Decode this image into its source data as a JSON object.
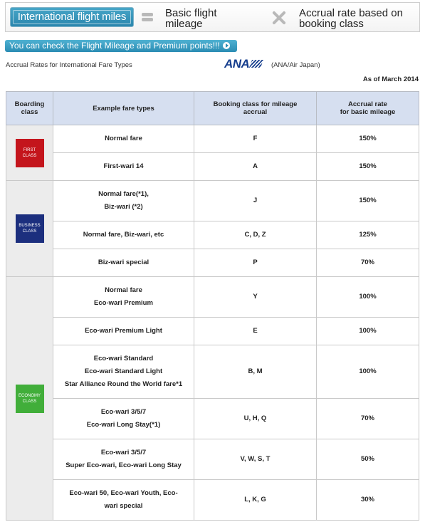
{
  "header": {
    "intl_miles_label": "International flight miles",
    "basic_mileage_label": [
      "Basic flight",
      "mileage"
    ],
    "accrual_rate_label": [
      "Accrual rate based on",
      "booking class"
    ]
  },
  "check_link": "You can check the Flight Mileage and Premium points!!!",
  "subtitle": "Accrual Rates for International Fare Types",
  "airline": {
    "logo": "ANA",
    "name": "(ANA/Air Japan)"
  },
  "as_of": "As of March 2014",
  "table": {
    "headers": [
      [
        "Boarding",
        "class"
      ],
      [
        "Example fare types"
      ],
      [
        "Booking class for mileage",
        "accrual"
      ],
      [
        "Accrual rate",
        "for basic mileage"
      ]
    ],
    "groups": [
      {
        "badge": [
          "FIRST",
          "CLASS"
        ],
        "rows": [
          {
            "fare": [
              "Normal fare"
            ],
            "classes": "F",
            "rate": "150%"
          },
          {
            "fare": [
              "First-wari 14"
            ],
            "classes": "A",
            "rate": "150%"
          }
        ]
      },
      {
        "badge": [
          "BUSINESS",
          "CLASS"
        ],
        "rows": [
          {
            "fare": [
              "Normal fare(*1),",
              "Biz-wari (*2)"
            ],
            "classes": "J",
            "rate": "150%"
          },
          {
            "fare": [
              "Normal fare, Biz-wari, etc"
            ],
            "classes": "C, D, Z",
            "rate": "125%"
          },
          {
            "fare": [
              "Biz-wari special"
            ],
            "classes": "P",
            "rate": "70%"
          }
        ]
      },
      {
        "badge": [
          "ECONOMY",
          "CLASS"
        ],
        "rows": [
          {
            "fare": [
              "Normal fare",
              "Eco-wari Premium"
            ],
            "classes": "Y",
            "rate": "100%"
          },
          {
            "fare": [
              "Eco-wari Premium Light"
            ],
            "classes": "E",
            "rate": "100%"
          },
          {
            "fare": [
              "Eco-wari Standard",
              "Eco-wari Standard Light",
              "Star Alliance Round the World fare*1"
            ],
            "classes": "B, M",
            "rate": "100%"
          },
          {
            "fare": [
              "Eco-wari 3/5/7",
              "Eco-wari Long Stay(*1)"
            ],
            "classes": "U, H, Q",
            "rate": "70%"
          },
          {
            "fare": [
              "Eco-wari 3/5/7",
              "Super Eco-wari, Eco-wari Long Stay"
            ],
            "classes": "V, W, S, T",
            "rate": "50%"
          },
          {
            "fare": [
              "Eco-wari 50, Eco-wari Youth, Eco-",
              "wari special"
            ],
            "classes": "L, K, G",
            "rate": "30%"
          }
        ]
      }
    ]
  }
}
